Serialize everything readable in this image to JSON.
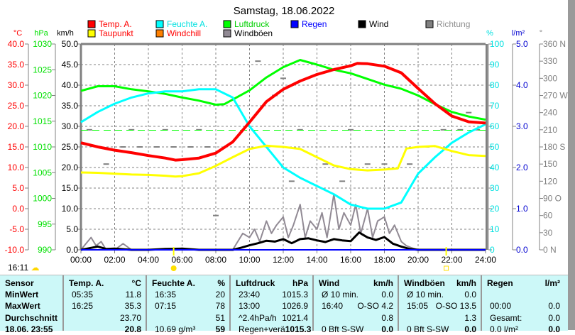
{
  "title": "Samstag, 18.06.2022",
  "legend": [
    {
      "label": "Temp. A.",
      "color": "#ff0000",
      "text_color": "#ff0000"
    },
    {
      "label": "Feuchte A.",
      "color": "#00ffff",
      "text_color": "#00e0e0"
    },
    {
      "label": "Luftdruck",
      "color": "#00ff00",
      "text_color": "#00d000"
    },
    {
      "label": "Regen",
      "color": "#0000ff",
      "text_color": "#0000ff"
    },
    {
      "label": "Wind",
      "color": "#000000",
      "text_color": "#000000"
    },
    {
      "label": "Richtung",
      "color": "#808080",
      "text_color": "#909090"
    },
    {
      "label": "Taupunkt",
      "color": "#ffff00",
      "text_color": "#ff0000"
    },
    {
      "label": "Windchill",
      "color": "#ff8000",
      "text_color": "#ff0000"
    },
    {
      "label": "Windböen",
      "color": "#918a94",
      "text_color": "#000000"
    }
  ],
  "clock": "16:11",
  "chart_data": {
    "type": "line",
    "title": "Samstag, 18.06.2022",
    "xlim": [
      0,
      24
    ],
    "x_ticks": [
      "00:00",
      "02:00",
      "04:00",
      "06:00",
      "08:00",
      "10:00",
      "12:00",
      "14:00",
      "16:00",
      "18:00",
      "20:00",
      "22:00",
      "24:00"
    ],
    "axes": {
      "temp": {
        "unit": "°C",
        "range": [
          -10,
          40
        ],
        "ticks": [
          "40.0",
          "35.0",
          "30.0",
          "25.0",
          "20.0",
          "15.0",
          "10.0",
          "5.0",
          "0.0",
          "-5.0",
          "-10.0"
        ]
      },
      "pressure": {
        "unit": "hPa",
        "range": [
          990,
          1030
        ],
        "ticks": [
          "1030",
          "1025",
          "1020",
          "1015",
          "1010",
          "1005",
          "1000",
          "995",
          "990"
        ]
      },
      "wind": {
        "unit": "km/h",
        "range": [
          0,
          50
        ],
        "ticks": [
          "50.0",
          "45.0",
          "40.0",
          "35.0",
          "30.0",
          "25.0",
          "20.0",
          "15.0",
          "10.0",
          "5.0",
          "0.0"
        ]
      },
      "humidity": {
        "unit": "%",
        "range": [
          0,
          100
        ],
        "ticks": [
          "100",
          "90",
          "80",
          "70",
          "60",
          "50",
          "40",
          "30",
          "20",
          "10",
          "0"
        ]
      },
      "rain": {
        "unit": "l/m²",
        "range": [
          0,
          5
        ],
        "ticks": [
          "5.0",
          "4.0",
          "3.0",
          "2.0",
          "1.0",
          "0.0"
        ]
      },
      "direction": {
        "unit": "°",
        "range": [
          0,
          360
        ],
        "ticks": [
          "360 N",
          "330",
          "300",
          "270 W",
          "240",
          "210",
          "180 S",
          "150",
          "120",
          "90 O",
          "60",
          "30",
          "0 N"
        ]
      }
    },
    "series": [
      {
        "name": "Temp. A.",
        "axis": "temp",
        "color": "#ff0000",
        "x": [
          0,
          1,
          2,
          3,
          4,
          5,
          5.6,
          6,
          7,
          8,
          9,
          10,
          11,
          12,
          13,
          14,
          15,
          16,
          16.4,
          17,
          18,
          19,
          20,
          21,
          22,
          23,
          24
        ],
        "y": [
          16,
          15,
          14.2,
          13.6,
          12.9,
          12.3,
          11.8,
          11.9,
          12.3,
          13.5,
          16.2,
          21,
          26,
          29,
          31,
          32.6,
          33.8,
          34.7,
          35.3,
          35.2,
          34.6,
          33,
          29.2,
          25.5,
          22.5,
          21.1,
          20.8
        ]
      },
      {
        "name": "Taupunkt",
        "axis": "temp",
        "color": "#ffff00",
        "x": [
          0,
          1,
          2,
          3,
          4,
          5,
          5.6,
          6,
          7,
          8,
          9,
          10,
          11,
          12,
          13,
          14,
          15,
          16,
          17,
          18,
          18.8,
          19.3,
          20,
          21,
          22,
          23,
          24
        ],
        "y": [
          8.8,
          8.7,
          8.5,
          8.3,
          8.2,
          8,
          7.8,
          7.9,
          8.6,
          10.4,
          12.5,
          14.5,
          15.3,
          15,
          14.5,
          12.5,
          10.5,
          9.6,
          9.3,
          9.5,
          9.8,
          14.6,
          15,
          15.2,
          14,
          13,
          12.8
        ]
      },
      {
        "name": "Feuchte A.",
        "axis": "humidity",
        "color": "#00ffff",
        "x": [
          0,
          1,
          2,
          3,
          4,
          5,
          6,
          7,
          8,
          9,
          10,
          11,
          12,
          13,
          14,
          15,
          16,
          17,
          18,
          19,
          19.5,
          20,
          21,
          22,
          23,
          24
        ],
        "y": [
          62,
          67,
          71,
          74,
          76,
          77,
          77,
          78,
          78,
          74,
          60,
          50,
          40,
          35,
          31,
          27,
          22,
          20,
          20,
          23,
          30,
          37,
          45,
          52,
          57,
          61
        ]
      },
      {
        "name": "Luftdruck",
        "axis": "pressure",
        "color": "#00ff00",
        "x": [
          0,
          1,
          2,
          3,
          4,
          5,
          6,
          7,
          8,
          8.5,
          9,
          10,
          11,
          12,
          13,
          14,
          15,
          16,
          17,
          18,
          19,
          20,
          21,
          22,
          23,
          24
        ],
        "y": [
          1020.9,
          1021.8,
          1021.8,
          1021.2,
          1020.8,
          1020.3,
          1019.6,
          1019,
          1018.2,
          1018.3,
          1019.2,
          1021,
          1023.5,
          1025.5,
          1026.9,
          1026,
          1025,
          1024.3,
          1023.2,
          1022.1,
          1021.3,
          1020,
          1018.3,
          1016.8,
          1015.9,
          1015.3
        ]
      },
      {
        "name": "Windböen",
        "axis": "wind",
        "color": "#918a94",
        "x": [
          0,
          0.3,
          0.6,
          0.9,
          1.2,
          1.5,
          2,
          2.5,
          3,
          3.5,
          4,
          4.5,
          5,
          5.5,
          6,
          6.5,
          7,
          7.5,
          8,
          8.5,
          9,
          9.3,
          9.6,
          10,
          10.3,
          10.6,
          11,
          11.3,
          11.6,
          12,
          12.3,
          12.6,
          13,
          13.3,
          13.6,
          14,
          14.3,
          14.6,
          15,
          15.3,
          15.6,
          16,
          16.3,
          16.6,
          17,
          17.3,
          17.6,
          18,
          18.3,
          18.6,
          19,
          19.3,
          19.6,
          20,
          24
        ],
        "y": [
          0,
          1.5,
          3,
          1,
          2,
          0,
          0,
          1.5,
          0,
          0,
          0,
          0,
          0,
          0,
          0,
          0,
          0,
          0,
          0,
          0,
          0,
          2,
          4,
          3,
          5,
          2,
          7,
          4,
          6,
          8,
          3,
          6,
          11,
          3,
          7,
          5,
          9,
          3,
          13.5,
          5,
          9,
          6,
          11,
          4,
          10,
          3,
          7,
          8,
          4,
          6,
          2,
          1,
          0.5,
          0,
          0
        ]
      },
      {
        "name": "Wind",
        "axis": "wind",
        "color": "#000000",
        "x": [
          0,
          0.5,
          1,
          1.5,
          2,
          3,
          4,
          5,
          6,
          7,
          8,
          9,
          9.5,
          10,
          10.5,
          11,
          11.5,
          12,
          12.5,
          13,
          13.5,
          14,
          14.5,
          15,
          15.5,
          16,
          16.5,
          17,
          17.5,
          18,
          18.5,
          19,
          19.5,
          20,
          24
        ],
        "y": [
          0,
          0.4,
          0.8,
          0.2,
          0.3,
          0,
          0,
          0.2,
          0.3,
          0,
          0,
          0,
          0.5,
          1.1,
          1.6,
          2.2,
          2.0,
          2.6,
          1.6,
          2.6,
          2.8,
          2.3,
          1.9,
          2.6,
          2.3,
          2.1,
          4.2,
          3.0,
          2.4,
          3.1,
          1.5,
          0.8,
          0.2,
          0,
          0
        ]
      },
      {
        "name": "Regen",
        "axis": "rain",
        "color": "#0000ff",
        "x": [
          0,
          24
        ],
        "y": [
          0,
          0
        ]
      }
    ],
    "reference_lines": [
      {
        "axis": "pressure",
        "value": 1013.25,
        "color": "#00ff00",
        "style": "dashed"
      }
    ],
    "direction_points": [
      [
        0.5,
        210
      ],
      [
        1.5,
        150
      ],
      [
        2.5,
        180
      ],
      [
        3.5,
        180
      ],
      [
        4.5,
        180
      ],
      [
        5.5,
        180
      ],
      [
        6.5,
        180
      ],
      [
        7.5,
        180
      ],
      [
        3,
        210
      ],
      [
        5,
        210
      ],
      [
        7,
        210
      ],
      [
        8,
        60
      ],
      [
        10.5,
        330
      ],
      [
        11.5,
        270
      ],
      [
        12,
        300
      ],
      [
        12.5,
        120
      ],
      [
        13,
        210
      ],
      [
        14.5,
        150
      ],
      [
        15.5,
        120
      ],
      [
        16,
        210
      ],
      [
        17,
        150
      ],
      [
        18,
        150
      ],
      [
        19.5,
        150
      ],
      [
        20.5,
        180
      ],
      [
        21.5,
        210
      ],
      [
        22.5,
        210
      ],
      [
        23.5,
        210
      ],
      [
        23,
        240
      ]
    ],
    "sunrise": "05:30",
    "sunset": "21:40"
  },
  "table": {
    "columns": [
      {
        "head": "Sensor",
        "unit": "",
        "rows": [
          [
            "MinWert",
            ""
          ],
          [
            "MaxWert",
            ""
          ],
          [
            "Durchschnitt",
            ""
          ],
          [
            "18.06. 23:55",
            ""
          ]
        ]
      },
      {
        "head": "Temp. A.",
        "unit": "°C",
        "rows": [
          [
            "05:35",
            "11.8"
          ],
          [
            "16:25",
            "35.3"
          ],
          [
            "",
            "23.70"
          ],
          [
            "",
            "20.8"
          ]
        ]
      },
      {
        "head": "Feuchte A.",
        "unit": "%",
        "rows": [
          [
            "16:35",
            "20"
          ],
          [
            "07:15",
            "78"
          ],
          [
            "",
            "51"
          ],
          [
            "10.69 g/m³",
            "59"
          ]
        ]
      },
      {
        "head": "Luftdruck",
        "unit": "hPa",
        "rows": [
          [
            "23:40",
            "1015.3"
          ],
          [
            "13:00",
            "1026.9"
          ],
          [
            "^2.4hPa/h",
            "1021.4"
          ],
          [
            "Regen+verä",
            "1015.3"
          ]
        ]
      },
      {
        "head": "Wind",
        "unit": "km/h",
        "rows": [
          [
            "Ø 10 min.",
            "0.0"
          ],
          [
            "16:40",
            "O-SO 4.2"
          ],
          [
            "",
            "0.8"
          ],
          [
            "0 Bft S-SW",
            "0.0"
          ]
        ]
      },
      {
        "head": "Windböen",
        "unit": "km/h",
        "rows": [
          [
            "Ø 10 min.",
            "0.0"
          ],
          [
            "15:05",
            "O-SO 13.5"
          ],
          [
            "",
            "1.3"
          ],
          [
            "0 Bft S-SW",
            "0.0"
          ]
        ]
      },
      {
        "head": "Regen",
        "unit": "l/m²",
        "rows": [
          [
            "",
            ""
          ],
          [
            "00:00",
            "0.0"
          ],
          [
            "Gesamt:",
            "0.0"
          ],
          [
            "0.0 l/m²",
            "0.0"
          ]
        ]
      }
    ]
  }
}
